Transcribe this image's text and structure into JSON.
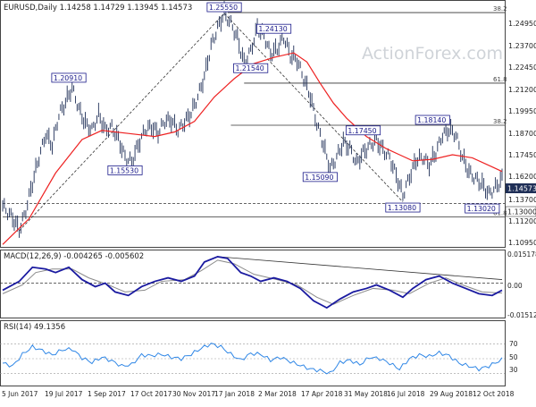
{
  "header": "EURUSD,Daily  1.14258  1.14729  1.13945  1.14573",
  "watermark": "ActionForex.com",
  "colors": {
    "price": "#1f2f57",
    "ma": "#ee2222",
    "macd": "#1a1aa0",
    "signal": "#8a8a8a",
    "rsi": "#2e86e6",
    "level": "#333333",
    "trend": "#333333",
    "label_border": "#1a1a8a",
    "current_price_bg": "#1f2f57"
  },
  "chart_data": [
    {
      "type": "line",
      "subtype": "ohlc-daily",
      "title": "EURUSD,Daily",
      "ohlc_last": {
        "open": 1.14258,
        "high": 1.14729,
        "low": 1.13945,
        "close": 1.14573
      },
      "x_ticks": [
        "5 Jun 2017",
        "19 Jul 2017",
        "1 Sep 2017",
        "17 Oct 2017",
        "30 Nov 2017",
        "17 Jan 2018",
        "2 Mar 2018",
        "17 Apr 2018",
        "31 May 2018",
        "16 Jul 2018",
        "29 Aug 2018",
        "12 Oct 2018"
      ],
      "y_ticks": [
        "1.24950",
        "1.23700",
        "1.22450",
        "1.21200",
        "1.19950",
        "1.18700",
        "1.17450",
        "1.16200",
        "1.14950",
        "1.13700",
        "1.12450",
        "1.11200",
        "1.10950"
      ],
      "ylim": [
        1.102,
        1.262
      ],
      "current_price_label": "1.14573",
      "price_path": [
        [
          0,
          1.128
        ],
        [
          3,
          1.12
        ],
        [
          5,
          1.112
        ],
        [
          7,
          1.125
        ],
        [
          9,
          1.143
        ],
        [
          11,
          1.16
        ],
        [
          13,
          1.175
        ],
        [
          15,
          1.168
        ],
        [
          17,
          1.188
        ],
        [
          19,
          1.196
        ],
        [
          21,
          1.206
        ],
        [
          23,
          1.192
        ],
        [
          25,
          1.182
        ],
        [
          27,
          1.178
        ],
        [
          29,
          1.188
        ],
        [
          31,
          1.178
        ],
        [
          33,
          1.18
        ],
        [
          35,
          1.172
        ],
        [
          37,
          1.16
        ],
        [
          39,
          1.157
        ],
        [
          41,
          1.168
        ],
        [
          43,
          1.178
        ],
        [
          45,
          1.18
        ],
        [
          47,
          1.176
        ],
        [
          49,
          1.184
        ],
        [
          51,
          1.184
        ],
        [
          53,
          1.178
        ],
        [
          55,
          1.183
        ],
        [
          57,
          1.189
        ],
        [
          59,
          1.2
        ],
        [
          61,
          1.213
        ],
        [
          63,
          1.233
        ],
        [
          65,
          1.245
        ],
        [
          67,
          1.255
        ],
        [
          69,
          1.248
        ],
        [
          71,
          1.238
        ],
        [
          73,
          1.222
        ],
        [
          75,
          1.23
        ],
        [
          77,
          1.245
        ],
        [
          79,
          1.24
        ],
        [
          81,
          1.228
        ],
        [
          83,
          1.231
        ],
        [
          85,
          1.239
        ],
        [
          87,
          1.227
        ],
        [
          89,
          1.224
        ],
        [
          91,
          1.212
        ],
        [
          93,
          1.2
        ],
        [
          95,
          1.182
        ],
        [
          97,
          1.168
        ],
        [
          99,
          1.152
        ],
        [
          101,
          1.16
        ],
        [
          103,
          1.17
        ],
        [
          105,
          1.166
        ],
        [
          107,
          1.156
        ],
        [
          109,
          1.163
        ],
        [
          111,
          1.168
        ],
        [
          113,
          1.171
        ],
        [
          115,
          1.165
        ],
        [
          117,
          1.16
        ],
        [
          119,
          1.148
        ],
        [
          121,
          1.135
        ],
        [
          123,
          1.147
        ],
        [
          125,
          1.158
        ],
        [
          127,
          1.16
        ],
        [
          129,
          1.155
        ],
        [
          131,
          1.163
        ],
        [
          133,
          1.175
        ],
        [
          135,
          1.178
        ],
        [
          137,
          1.175
        ],
        [
          139,
          1.16
        ],
        [
          141,
          1.15
        ],
        [
          143,
          1.146
        ],
        [
          145,
          1.142
        ],
        [
          147,
          1.136
        ],
        [
          149,
          1.14
        ],
        [
          151,
          1.1457
        ]
      ],
      "ma_path": [
        [
          0,
          1.103
        ],
        [
          8,
          1.12
        ],
        [
          16,
          1.15
        ],
        [
          24,
          1.172
        ],
        [
          30,
          1.178
        ],
        [
          38,
          1.176
        ],
        [
          46,
          1.174
        ],
        [
          52,
          1.177
        ],
        [
          58,
          1.184
        ],
        [
          64,
          1.2
        ],
        [
          70,
          1.212
        ],
        [
          76,
          1.222
        ],
        [
          82,
          1.226
        ],
        [
          88,
          1.229
        ],
        [
          92,
          1.223
        ],
        [
          96,
          1.209
        ],
        [
          100,
          1.196
        ],
        [
          104,
          1.186
        ],
        [
          110,
          1.174
        ],
        [
          116,
          1.166
        ],
        [
          120,
          1.162
        ],
        [
          124,
          1.158
        ],
        [
          130,
          1.159
        ],
        [
          136,
          1.162
        ],
        [
          142,
          1.16
        ],
        [
          148,
          1.154
        ],
        [
          151,
          1.151
        ]
      ],
      "levels": [
        {
          "value": 1.2555,
          "label": "38.2",
          "x_start": 68
        },
        {
          "value": 1.2091,
          "label": "61.8",
          "x_start": 73
        },
        {
          "value": 1.1814,
          "label": "38.2",
          "x_start": 69
        },
        {
          "value": 1.13,
          "label": "1.13000",
          "x_start": 0,
          "dashed": true,
          "label_right": true
        },
        {
          "value": 1.1212,
          "label": "61.8",
          "x_start": 0
        }
      ],
      "annotations": [
        {
          "text": "1.25550",
          "x": 67,
          "y": 1.2555,
          "pos": "above"
        },
        {
          "text": "1.24130",
          "x": 82,
          "y": 1.2413,
          "pos": "above"
        },
        {
          "text": "1.21540",
          "x": 75,
          "y": 1.2154,
          "pos": "above"
        },
        {
          "text": "1.20910",
          "x": 20,
          "y": 1.2091,
          "pos": "above"
        },
        {
          "text": "1.15530",
          "x": 37,
          "y": 1.1553,
          "pos": "below"
        },
        {
          "text": "1.18140",
          "x": 130,
          "y": 1.1814,
          "pos": "above"
        },
        {
          "text": "1.17450",
          "x": 109,
          "y": 1.1745,
          "pos": "above"
        },
        {
          "text": "1.15090",
          "x": 96,
          "y": 1.1509,
          "pos": "below"
        },
        {
          "text": "1.13080",
          "x": 121,
          "y": 1.1308,
          "pos": "below"
        },
        {
          "text": "1.13020",
          "x": 145,
          "y": 1.1302,
          "pos": "below"
        }
      ],
      "trendlines": [
        {
          "from": [
            5,
            1.112
          ],
          "to": [
            67,
            1.255
          ]
        },
        {
          "from": [
            67,
            1.255
          ],
          "to": [
            121,
            1.131
          ]
        }
      ]
    },
    {
      "type": "line",
      "title": "MACD(12,26,9) -0.004265 -0.005602",
      "y_ticks": [
        "0.015178",
        "0.00",
        "-0.015126"
      ],
      "ylim": [
        -0.019,
        0.017
      ],
      "zero_line": true,
      "macd_path": [
        [
          0,
          -0.004
        ],
        [
          5,
          0.001
        ],
        [
          9,
          0.009
        ],
        [
          13,
          0.008
        ],
        [
          16,
          0.006
        ],
        [
          20,
          0.009
        ],
        [
          24,
          0.002
        ],
        [
          28,
          -0.002
        ],
        [
          31,
          0.0
        ],
        [
          34,
          -0.005
        ],
        [
          38,
          -0.007
        ],
        [
          42,
          -0.002
        ],
        [
          46,
          0.001
        ],
        [
          50,
          0.003
        ],
        [
          54,
          0.001
        ],
        [
          58,
          0.004
        ],
        [
          61,
          0.012
        ],
        [
          65,
          0.015
        ],
        [
          68,
          0.014
        ],
        [
          72,
          0.006
        ],
        [
          75,
          0.004
        ],
        [
          78,
          0.001
        ],
        [
          82,
          0.003
        ],
        [
          86,
          0.001
        ],
        [
          90,
          -0.003
        ],
        [
          94,
          -0.01
        ],
        [
          98,
          -0.014
        ],
        [
          102,
          -0.009
        ],
        [
          106,
          -0.005
        ],
        [
          110,
          -0.003
        ],
        [
          113,
          -0.001
        ],
        [
          117,
          -0.004
        ],
        [
          121,
          -0.008
        ],
        [
          124,
          -0.003
        ],
        [
          128,
          0.002
        ],
        [
          132,
          0.004
        ],
        [
          136,
          0.0
        ],
        [
          140,
          -0.003
        ],
        [
          144,
          -0.006
        ],
        [
          148,
          -0.007
        ],
        [
          151,
          -0.004
        ]
      ],
      "signal_path": [
        [
          0,
          -0.006
        ],
        [
          6,
          -0.001
        ],
        [
          10,
          0.006
        ],
        [
          15,
          0.008
        ],
        [
          21,
          0.008
        ],
        [
          26,
          0.003
        ],
        [
          32,
          -0.001
        ],
        [
          37,
          -0.005
        ],
        [
          43,
          -0.004
        ],
        [
          48,
          0.001
        ],
        [
          55,
          0.002
        ],
        [
          60,
          0.007
        ],
        [
          65,
          0.013
        ],
        [
          70,
          0.011
        ],
        [
          76,
          0.005
        ],
        [
          83,
          0.002
        ],
        [
          89,
          -0.001
        ],
        [
          95,
          -0.008
        ],
        [
          100,
          -0.012
        ],
        [
          106,
          -0.007
        ],
        [
          112,
          -0.003
        ],
        [
          118,
          -0.004
        ],
        [
          123,
          -0.006
        ],
        [
          129,
          0.0
        ],
        [
          134,
          0.003
        ],
        [
          139,
          -0.001
        ],
        [
          145,
          -0.005
        ],
        [
          151,
          -0.0056
        ]
      ],
      "trendline": {
        "from": [
          65,
          0.015
        ],
        "to": [
          151,
          0.002
        ]
      }
    },
    {
      "type": "line",
      "title": "RSI(14) 49.1356",
      "y_ticks": [
        "70",
        "50",
        "30"
      ],
      "ylim": [
        0,
        100
      ],
      "guides": [
        70,
        50,
        30
      ],
      "rsi_path": [
        [
          0,
          44
        ],
        [
          3,
          40
        ],
        [
          6,
          56
        ],
        [
          9,
          66
        ],
        [
          12,
          61
        ],
        [
          15,
          55
        ],
        [
          18,
          62
        ],
        [
          21,
          63
        ],
        [
          24,
          51
        ],
        [
          27,
          45
        ],
        [
          30,
          52
        ],
        [
          33,
          47
        ],
        [
          36,
          40
        ],
        [
          39,
          42
        ],
        [
          42,
          55
        ],
        [
          45,
          54
        ],
        [
          48,
          56
        ],
        [
          51,
          52
        ],
        [
          54,
          50
        ],
        [
          57,
          56
        ],
        [
          60,
          64
        ],
        [
          63,
          70
        ],
        [
          66,
          66
        ],
        [
          69,
          56
        ],
        [
          72,
          48
        ],
        [
          75,
          57
        ],
        [
          78,
          56
        ],
        [
          81,
          48
        ],
        [
          84,
          52
        ],
        [
          87,
          46
        ],
        [
          90,
          41
        ],
        [
          93,
          36
        ],
        [
          96,
          34
        ],
        [
          99,
          30
        ],
        [
          102,
          45
        ],
        [
          105,
          48
        ],
        [
          108,
          42
        ],
        [
          111,
          52
        ],
        [
          114,
          50
        ],
        [
          117,
          44
        ],
        [
          120,
          36
        ],
        [
          123,
          50
        ],
        [
          126,
          55
        ],
        [
          129,
          53
        ],
        [
          132,
          58
        ],
        [
          135,
          54
        ],
        [
          138,
          44
        ],
        [
          141,
          40
        ],
        [
          144,
          36
        ],
        [
          147,
          40
        ],
        [
          151,
          49
        ]
      ]
    }
  ]
}
